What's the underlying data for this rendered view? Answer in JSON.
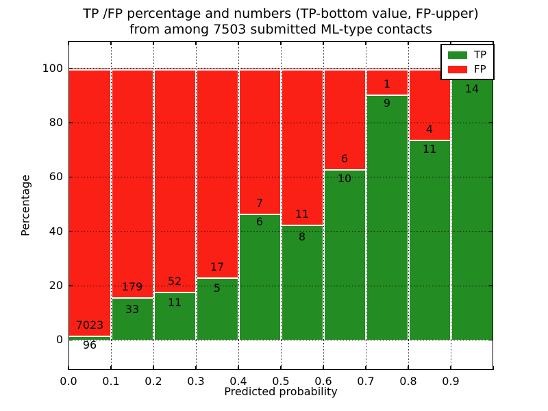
{
  "title": {
    "line1": "TP /FP percentage and numbers (TP-bottom value, FP-upper)",
    "line2": "from among 7503 submitted ML-type contacts"
  },
  "axes": {
    "xlabel": "Predicted probability",
    "ylabel": "Percentage",
    "x_tick_labels": [
      "0.0",
      "0.1",
      "0.2",
      "0.3",
      "0.4",
      "0.5",
      "0.6",
      "0.7",
      "0.8",
      "0.9"
    ],
    "y_tick_labels": [
      "0",
      "20",
      "40",
      "60",
      "80",
      "100"
    ],
    "y_tick_values": [
      0,
      20,
      40,
      60,
      80,
      100
    ],
    "xlim": [
      0.0,
      1.0
    ],
    "ylim": [
      -11,
      110
    ],
    "grid": "dotted"
  },
  "legend": {
    "position": "upper-right",
    "items": [
      {
        "label": "TP",
        "color": "#238c23"
      },
      {
        "label": "FP",
        "color": "#fb2016"
      }
    ]
  },
  "chart_data": {
    "type": "bar",
    "stacked": true,
    "normalized_to": 100,
    "title": "TP /FP percentage and numbers (TP-bottom value, FP-upper) from among 7503 submitted ML-type contacts",
    "xlabel": "Predicted probability",
    "ylabel": "Percentage",
    "bins": [
      "0.0-0.1",
      "0.1-0.2",
      "0.2-0.3",
      "0.3-0.4",
      "0.4-0.5",
      "0.5-0.6",
      "0.6-0.7",
      "0.7-0.8",
      "0.8-0.9",
      "0.9-1.0"
    ],
    "series": [
      {
        "name": "TP",
        "color": "#238c23",
        "counts": [
          96,
          33,
          11,
          5,
          6,
          8,
          10,
          9,
          11,
          14
        ]
      },
      {
        "name": "FP",
        "color": "#fb2016",
        "counts": [
          7023,
          179,
          52,
          17,
          7,
          11,
          6,
          1,
          4,
          0
        ]
      }
    ],
    "tp_percent": [
      1.35,
      15.57,
      17.46,
      22.73,
      46.15,
      42.11,
      62.5,
      90.0,
      73.33,
      100.0
    ],
    "fp_labels": [
      "7023",
      "179",
      "52",
      "17",
      "7",
      "11",
      "6",
      "1",
      "4",
      ""
    ],
    "tp_labels": [
      "96",
      "33",
      "11",
      "5",
      "6",
      "8",
      "10",
      "9",
      "11",
      "14"
    ],
    "tp_label_dy": [
      4,
      8,
      6,
      6,
      2,
      8,
      4,
      3,
      4,
      21
    ]
  }
}
